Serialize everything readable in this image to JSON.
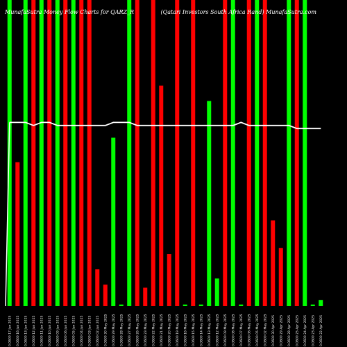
{
  "header": {
    "left_title": "MunafaSutra Money Flow Charts for QARZ_R",
    "right_title": "(Qatari Investors South Africa Rand) MunafaSutra.com"
  },
  "colors": {
    "up": "#00ff00",
    "down": "#ff0000",
    "line": "#ffffff",
    "background": "#000000"
  },
  "chart_data": {
    "type": "bar",
    "title": "MunafaSutra Money Flow Charts for QARZ_R",
    "subtitle": "(Qatari Investors South Africa Rand) MunafaSutra.com",
    "ylim": [
      0,
      100
    ],
    "categories": [
      "0.0600 17 Jun 2025",
      "0.0600 16 Jun 2025",
      "0.0600 13 Jun 2025",
      "0.0600 12 Jun 2025",
      "0.0600 11 Jun 2025",
      "0.0600 10 Jun 2025",
      "0.0600 09 Jun 2025",
      "0.0600 06 Jun 2025",
      "0.0600 05 Jun 2025",
      "0.0600 04 Jun 2025",
      "0.0600 03 Jun 2025",
      "0.0600 02 Jun 2025",
      "0.0600 30 May 2025",
      "0.0600 29 May 2025",
      "0.0600 28 May 2025",
      "0.0600 27 May 2025",
      "0.0600 26 May 2025",
      "0.0600 23 May 2025",
      "0.0600 22 May 2025",
      "0.0600 21 May 2025",
      "0.0600 20 May 2025",
      "0.0600 19 May 2025",
      "0.0600 16 May 2025",
      "0.0600 15 May 2025",
      "0.0600 14 May 2025",
      "0.0600 13 May 2025",
      "0.0600 12 May 2025",
      "0.0600 09 May 2025",
      "0.0600 08 May 2025",
      "0.0600 07 May 2025",
      "0.0600 06 May 2025",
      "0.0600 05 May 2025",
      "0.0600 02 May 2025",
      "0.0600 30 Apr 2025",
      "0.0600 29 Apr 2025",
      "0.0600 28 Apr 2025",
      "0.0600 25 Apr 2025",
      "0.0600 24 Apr 2025",
      "0.0600 23 Apr 2025",
      "0.0600 22 Apr 2025"
    ],
    "series": [
      {
        "values": [
          100,
          47,
          100,
          100,
          100,
          100,
          100,
          100,
          100,
          100,
          100,
          12,
          7,
          55,
          0.5,
          100,
          100,
          6,
          100,
          72,
          17,
          100,
          0.5,
          100,
          0.5,
          67,
          9,
          100,
          100,
          0.5,
          100,
          100,
          100,
          28,
          19,
          100,
          100,
          100,
          0.5,
          2
        ],
        "directions": [
          "up",
          "down",
          "up",
          "down",
          "up",
          "down",
          "up",
          "down",
          "up",
          "down",
          "down",
          "down",
          "down",
          "up",
          "up",
          "up",
          "down",
          "down",
          "down",
          "down",
          "down",
          "down",
          "up",
          "down",
          "up",
          "up",
          "up",
          "down",
          "up",
          "up",
          "down",
          "up",
          "down",
          "down",
          "down",
          "up",
          "down",
          "up",
          "up",
          "up"
        ]
      },
      {
        "type": "line",
        "values": [
          60,
          60,
          60,
          59,
          60,
          60,
          59,
          59,
          59,
          59,
          59,
          59,
          59,
          60,
          60,
          60,
          59,
          59,
          59,
          59,
          59,
          59,
          59,
          59,
          59,
          59,
          59,
          59,
          59,
          60,
          59,
          59,
          59,
          59,
          59,
          59,
          58,
          58,
          58,
          58
        ]
      }
    ]
  }
}
